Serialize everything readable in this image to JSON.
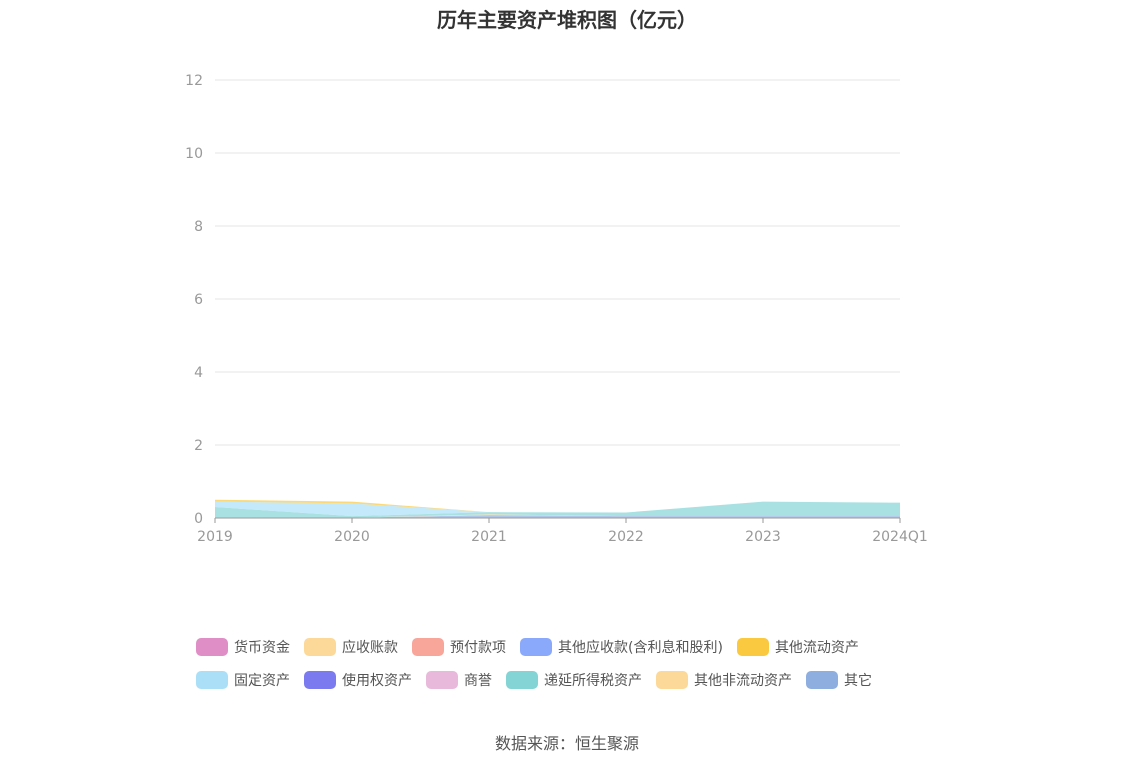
{
  "title": "历年主要资产堆积图（亿元）",
  "source": "数据来源：恒生聚源",
  "chart_data": {
    "type": "area",
    "stacked": true,
    "categories": [
      "2019",
      "2020",
      "2021",
      "2022",
      "2023",
      "2024Q1"
    ],
    "ylim": [
      0,
      12
    ],
    "yticks": [
      0,
      2,
      4,
      6,
      8,
      10,
      12
    ],
    "grid": true,
    "legend_position": "bottom",
    "series": [
      {
        "name": "其它",
        "color": "#8eaedf",
        "values": [
          0.02,
          0.01,
          0.08,
          0.05,
          0.05,
          0.05
        ]
      },
      {
        "name": "其他非流动资产",
        "color": "#fcd999",
        "values": [
          0.0,
          0.0,
          0.02,
          0.0,
          0.0,
          0.0
        ]
      },
      {
        "name": "递延所得税资产",
        "color": "#84d4d6",
        "values": [
          0.28,
          0.04,
          0.06,
          0.1,
          0.4,
          0.37
        ]
      },
      {
        "name": "商誉",
        "color": "#e8b9da",
        "values": [
          0.0,
          0.0,
          0.0,
          0.0,
          0.0,
          0.0
        ]
      },
      {
        "name": "使用权资产",
        "color": "#7b7bef",
        "values": [
          0.0,
          0.0,
          0.0,
          0.0,
          0.0,
          0.0
        ]
      },
      {
        "name": "固定资产",
        "color": "#abdff8",
        "values": [
          0.15,
          0.35,
          0.0,
          0.0,
          0.0,
          0.0
        ]
      },
      {
        "name": "其他流动资产",
        "color": "#fbc93f",
        "values": [
          0.05,
          0.05,
          0.0,
          0.0,
          0.0,
          0.0
        ]
      },
      {
        "name": "其他应收款(含利息和股利)",
        "color": "#8aa9fa",
        "values": [
          0.0,
          0.0,
          0.0,
          0.0,
          0.0,
          0.0
        ]
      },
      {
        "name": "预付款项",
        "color": "#f8a59a",
        "values": [
          0.0,
          0.0,
          0.0,
          0.0,
          0.0,
          0.0
        ]
      },
      {
        "name": "应收账款",
        "color": "#fcd999",
        "values": [
          0.0,
          0.0,
          0.0,
          0.0,
          0.0,
          0.0
        ]
      },
      {
        "name": "货币资金",
        "color": "#df8fc6",
        "values": [
          0.0,
          0.0,
          0.0,
          0.0,
          0.0,
          0.0
        ]
      }
    ]
  }
}
